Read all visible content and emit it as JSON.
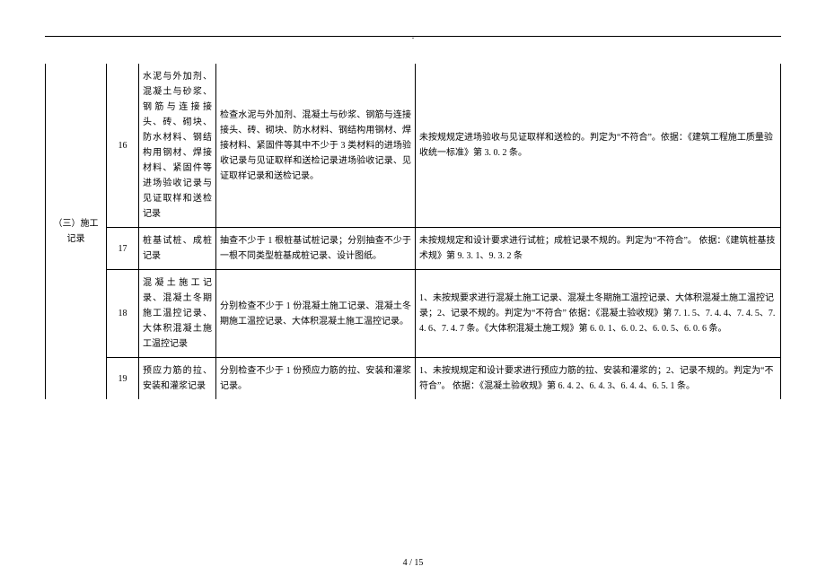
{
  "header_mark": ".",
  "category_label": "（三）施工记录",
  "rows": [
    {
      "num": "16",
      "item": "水泥与外加剂、混凝土与砂浆、钢筋与连接接头、砖、砌块、防水材料、钢结构用钢材、焊接材料、紧固件等进场验收记录与见证取样和送检记录",
      "check": "检查水泥与外加剂、混凝土与砂浆、钢筋与连接接头、砖、砌块、防水材料、钢结构用钢材、焊接材料、紧固件等其中不少于 3 类材料的进场验收记录与见证取样和送检记录进场验收记录、见证取样记录和送检记录。",
      "judge": "未按规规定进场验收与见证取样和送检的。判定为“不符合”。依据：《建筑工程施工质量验收统一标准》第 3. 0. 2 条。"
    },
    {
      "num": "17",
      "item": "桩基试桩、成桩记录",
      "check": "抽查不少于 1 根桩基试桩记录；分别抽查不少于一根不同类型桩基成桩记录、设计图纸。",
      "judge": "未按规规定和设计要求进行试桩；成桩记录不规的。判定为“不符合”。\n依据：《建筑桩基技术规》第 9. 3. 1、9. 3. 2 条"
    },
    {
      "num": "18",
      "item": "混凝土施工记录、混凝土冬期施工温控记录、大体积混凝土施工温控记录",
      "check": "分别检查不少于 1 份混凝土施工记录、混凝土冬期施工温控记录、大体积混凝土施工温控记录。",
      "judge": "1、未按规要求进行混凝土施工记录、混凝土冬期施工温控记录、大体积混凝土施工温控记录；2、记录不规的。判定为“不符合”\n依据：《混凝土验收规》第 7. 1. 5、7. 4. 4、7. 4. 5、7. 4. 6、7. 4. 7 条。《大体积混凝土施工规》第 6. 0. 1、6. 0. 2、6. 0. 5、6. 0. 6 条。"
    },
    {
      "num": "19",
      "item": "预应力筋的拉、安装和灌浆记录",
      "check": "分别检查不少于 1 份预应力筋的拉、安装和灌浆记录。",
      "judge": "1、未按规规定和设计要求进行预应力筋的拉、安装和灌浆的；2、记录不规的。判定为“不符合”。\n依据：《混凝土验收规》第 6. 4. 2、6. 4. 3、6. 4. 4、6. 5. 1 条。"
    }
  ],
  "page_number": "4 / 15"
}
